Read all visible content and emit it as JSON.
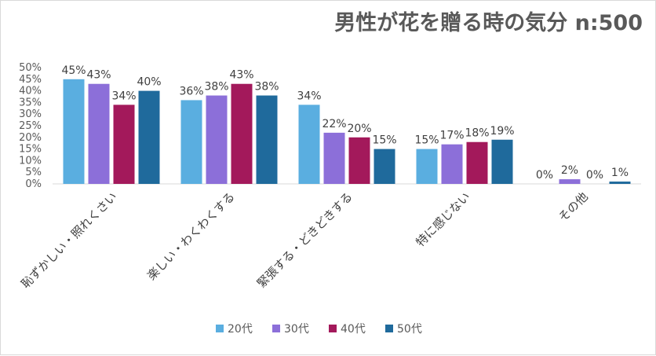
{
  "chart_data": {
    "type": "bar",
    "title": "男性が花を贈る時の気分 n:500",
    "categories": [
      "恥ずかしい・照れくさい",
      "楽しい・わくわくする",
      "緊張する・どきどきする",
      "特に感じない",
      "その他"
    ],
    "series": [
      {
        "name": "20代",
        "values": [
          45,
          36,
          34,
          15,
          0
        ],
        "color": "#5aaee0"
      },
      {
        "name": "30代",
        "values": [
          43,
          38,
          22,
          17,
          2
        ],
        "color": "#8c6fd9"
      },
      {
        "name": "40代",
        "values": [
          34,
          43,
          20,
          18,
          0
        ],
        "color": "#a3195b"
      },
      {
        "name": "50代",
        "values": [
          40,
          38,
          15,
          19,
          1
        ],
        "color": "#1f6a9c"
      }
    ],
    "ylim": [
      0,
      50
    ],
    "yticks": [
      0,
      5,
      10,
      15,
      20,
      25,
      30,
      35,
      40,
      45,
      50
    ],
    "value_suffix": "%",
    "grid": false,
    "legend_position": "bottom"
  }
}
